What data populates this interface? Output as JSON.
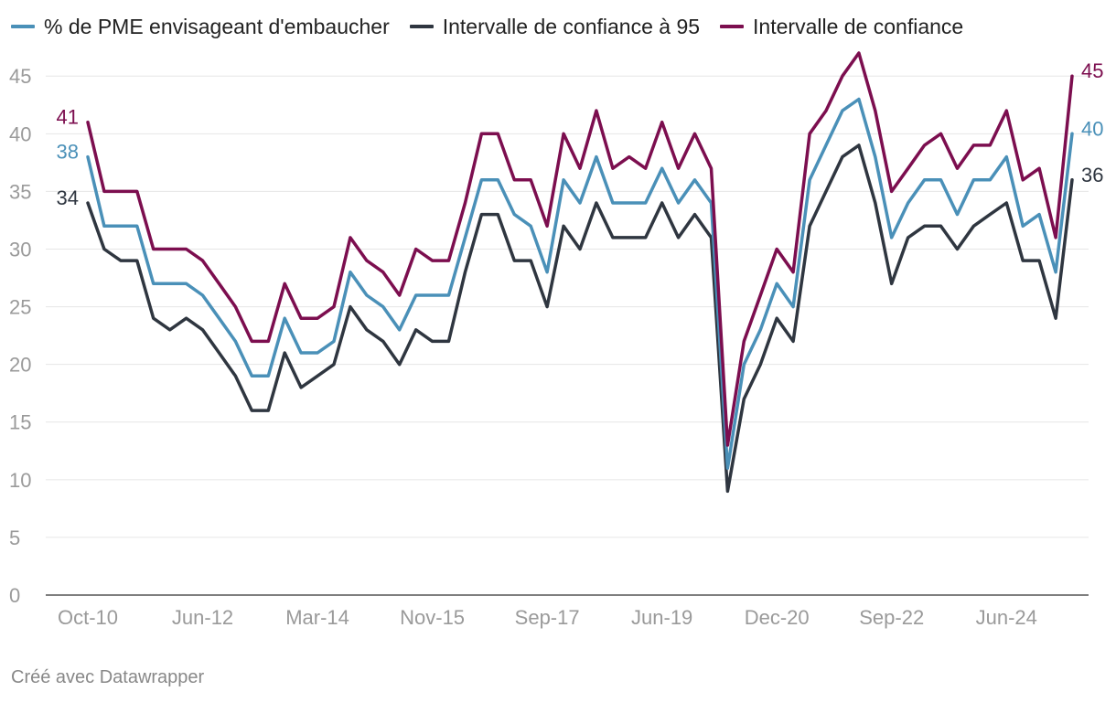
{
  "chart_data": {
    "type": "line",
    "title": "",
    "xlabel": "",
    "ylabel": "",
    "ylim": [
      0,
      47
    ],
    "yticks": [
      0,
      5,
      10,
      15,
      20,
      25,
      30,
      35,
      40,
      45
    ],
    "x_tick_labels": [
      "Oct-10",
      "Jun-12",
      "Mar-14",
      "Nov-15",
      "Sep-17",
      "Jun-19",
      "Dec-20",
      "Sep-22",
      "Jun-24"
    ],
    "x_tick_indices": [
      0,
      7,
      14,
      21,
      28,
      35,
      42,
      49,
      56
    ],
    "legend_position": "top-left",
    "grid": "horizontal",
    "series": [
      {
        "name": "Intervalle de confiance à 95",
        "color": "#2f3640",
        "end_labels": {
          "first": "34",
          "last": "36"
        },
        "values": [
          34,
          30,
          29,
          29,
          24,
          23,
          24,
          23,
          21,
          19,
          16,
          16,
          21,
          18,
          19,
          20,
          25,
          23,
          22,
          20,
          23,
          22,
          22,
          28,
          33,
          33,
          29,
          29,
          25,
          32,
          30,
          34,
          31,
          31,
          31,
          34,
          31,
          33,
          31,
          9,
          17,
          20,
          24,
          22,
          32,
          35,
          38,
          39,
          34,
          27,
          31,
          32,
          32,
          30,
          32,
          33,
          34,
          29,
          29,
          24,
          36
        ]
      },
      {
        "name": "% de PME envisageant d'embaucher",
        "color": "#4a90b8",
        "end_labels": {
          "first": "38",
          "last": "40"
        },
        "values": [
          38,
          32,
          32,
          32,
          27,
          27,
          27,
          26,
          24,
          22,
          19,
          19,
          24,
          21,
          21,
          22,
          28,
          26,
          25,
          23,
          26,
          26,
          26,
          31,
          36,
          36,
          33,
          32,
          28,
          36,
          34,
          38,
          34,
          34,
          34,
          37,
          34,
          36,
          34,
          11,
          20,
          23,
          27,
          25,
          36,
          39,
          42,
          43,
          38,
          31,
          34,
          36,
          36,
          33,
          36,
          36,
          38,
          32,
          33,
          28,
          40
        ]
      },
      {
        "name": "Intervalle de confiance",
        "color": "#7c0e4f",
        "end_labels": {
          "first": "41",
          "last": "45"
        },
        "values": [
          41,
          35,
          35,
          35,
          30,
          30,
          30,
          29,
          27,
          25,
          22,
          22,
          27,
          24,
          24,
          25,
          31,
          29,
          28,
          26,
          30,
          29,
          29,
          34,
          40,
          40,
          36,
          36,
          32,
          40,
          37,
          42,
          37,
          38,
          37,
          41,
          37,
          40,
          37,
          13,
          22,
          26,
          30,
          28,
          40,
          42,
          45,
          47,
          42,
          35,
          37,
          39,
          40,
          37,
          39,
          39,
          42,
          36,
          37,
          31,
          45
        ]
      }
    ]
  },
  "legend_items": [
    {
      "label": "% de PME envisageant d'embaucher",
      "color": "#4a90b8"
    },
    {
      "label": "Intervalle de confiance à 95",
      "color": "#2f3640"
    },
    {
      "label": "Intervalle de confiance",
      "color": "#7c0e4f"
    }
  ],
  "footer": "Créé avec Datawrapper"
}
